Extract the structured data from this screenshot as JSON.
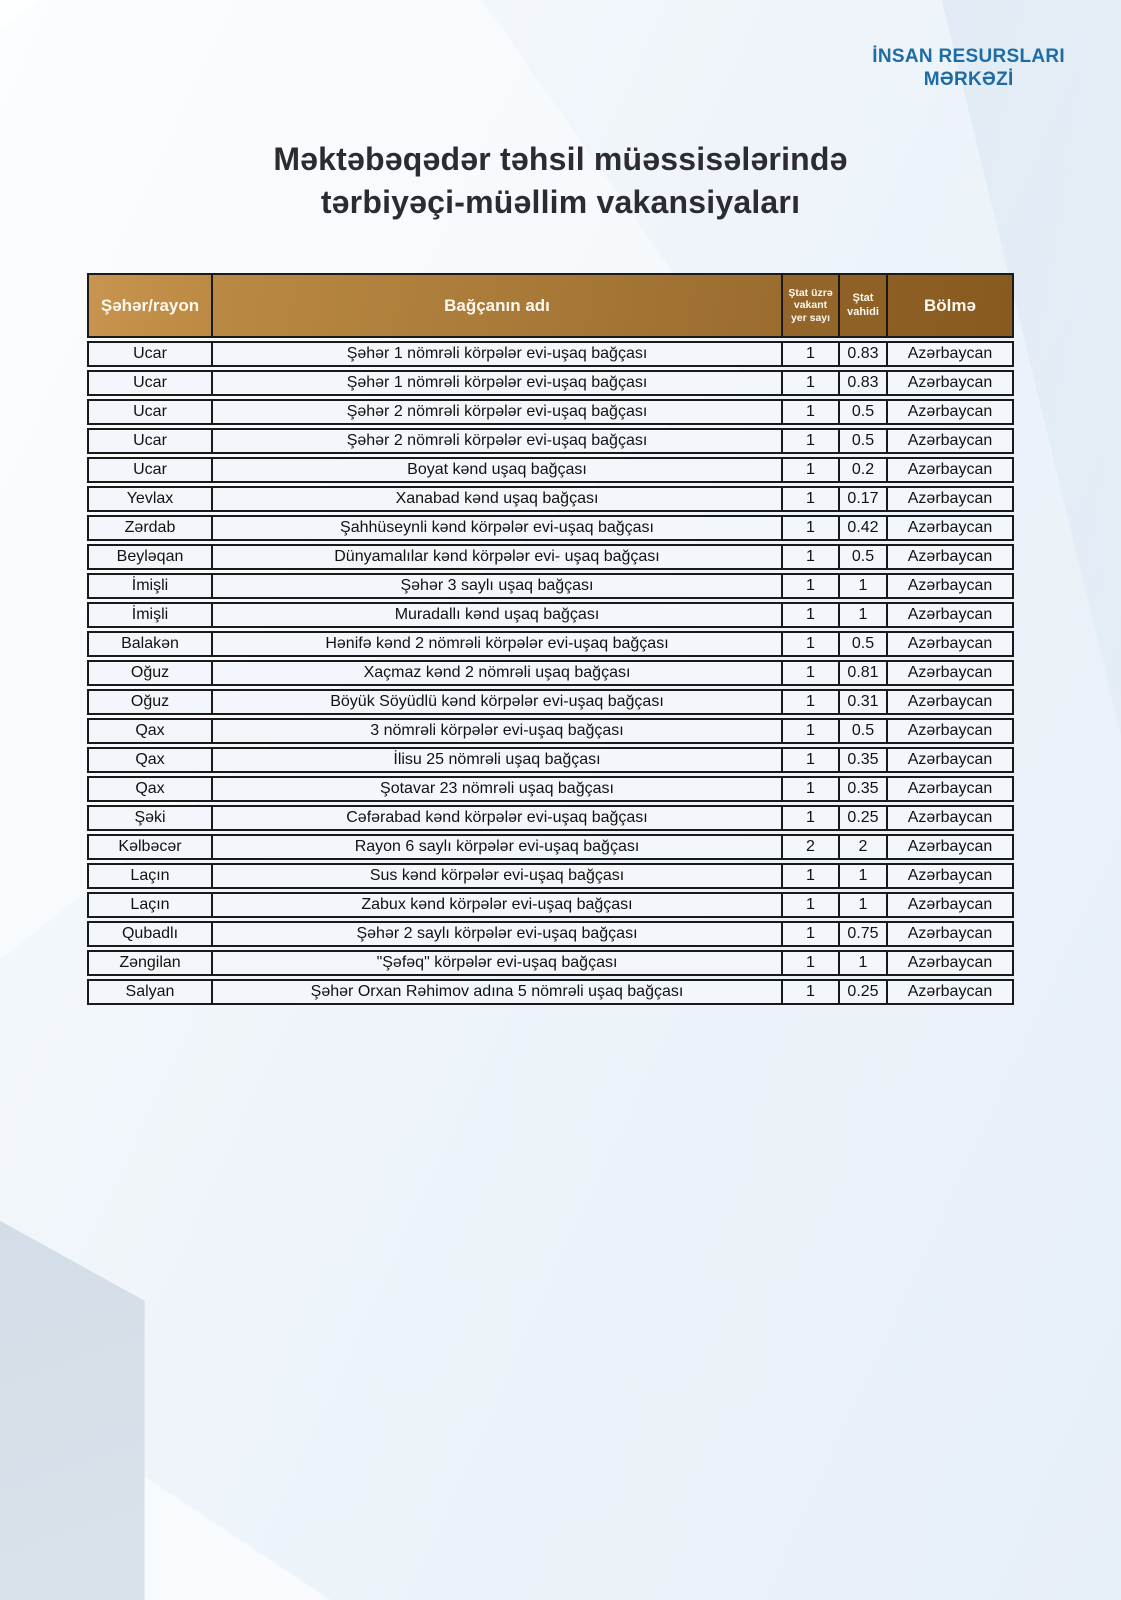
{
  "brand": {
    "line1": "İNSAN RESURSLARI",
    "line2": "MƏRKƏZİ"
  },
  "title": {
    "line1": "Məktəbəqədər təhsil müəssisələrində",
    "line2": "tərbiyəçi-müəllim vakansiyaları"
  },
  "colors": {
    "brand-blue": "#1d6ca6",
    "title-text": "#2c2b31",
    "header-brown-light": "#c4914c",
    "header-brown-dark": "#8a5c22",
    "border": "#1a1a1a",
    "row-bg": "#f3f7fb"
  },
  "table": {
    "columns": [
      "Şəhər/rayon",
      "Bağçanın adı",
      "Ştat üzrə vakant yer sayı",
      "Ştat vahidi",
      "Bölmə"
    ],
    "rows": [
      {
        "region": "Ucar",
        "name": "Şəhər 1 nömrəli körpələr evi-uşaq bağçası",
        "vacant": "1",
        "unit": "0.83",
        "section": "Azərbaycan"
      },
      {
        "region": "Ucar",
        "name": "Şəhər 1 nömrəli körpələr evi-uşaq bağçası",
        "vacant": "1",
        "unit": "0.83",
        "section": "Azərbaycan"
      },
      {
        "region": "Ucar",
        "name": "Şəhər 2 nömrəli körpələr evi-uşaq bağçası",
        "vacant": "1",
        "unit": "0.5",
        "section": "Azərbaycan"
      },
      {
        "region": "Ucar",
        "name": "Şəhər 2 nömrəli körpələr evi-uşaq bağçası",
        "vacant": "1",
        "unit": "0.5",
        "section": "Azərbaycan"
      },
      {
        "region": "Ucar",
        "name": "Boyat kənd uşaq bağçası",
        "vacant": "1",
        "unit": "0.2",
        "section": "Azərbaycan"
      },
      {
        "region": "Yevlax",
        "name": "Xanabad kənd uşaq bağçası",
        "vacant": "1",
        "unit": "0.17",
        "section": "Azərbaycan"
      },
      {
        "region": "Zərdab",
        "name": "Şahhüseynli kənd körpələr evi-uşaq bağçası",
        "vacant": "1",
        "unit": "0.42",
        "section": "Azərbaycan"
      },
      {
        "region": "Beyləqan",
        "name": "Dünyamalılar kənd körpələr evi- uşaq bağçası",
        "vacant": "1",
        "unit": "0.5",
        "section": "Azərbaycan"
      },
      {
        "region": "İmişli",
        "name": "Şəhər 3 saylı uşaq bağçası",
        "vacant": "1",
        "unit": "1",
        "section": "Azərbaycan"
      },
      {
        "region": "İmişli",
        "name": "Muradallı kənd uşaq bağçası",
        "vacant": "1",
        "unit": "1",
        "section": "Azərbaycan"
      },
      {
        "region": "Balakən",
        "name": "Hənifə kənd 2 nömrəli körpələr evi-uşaq bağçası",
        "vacant": "1",
        "unit": "0.5",
        "section": "Azərbaycan"
      },
      {
        "region": "Oğuz",
        "name": "Xaçmaz kənd 2 nömrəli uşaq bağçası",
        "vacant": "1",
        "unit": "0.81",
        "section": "Azərbaycan"
      },
      {
        "region": "Oğuz",
        "name": "Böyük Söyüdlü kənd körpələr evi-uşaq bağçası",
        "vacant": "1",
        "unit": "0.31",
        "section": "Azərbaycan"
      },
      {
        "region": "Qax",
        "name": "3 nömrəli körpələr evi-uşaq bağçası",
        "vacant": "1",
        "unit": "0.5",
        "section": "Azərbaycan"
      },
      {
        "region": "Qax",
        "name": "İlisu 25 nömrəli uşaq bağçası",
        "vacant": "1",
        "unit": "0.35",
        "section": "Azərbaycan"
      },
      {
        "region": "Qax",
        "name": "Şotavar 23 nömrəli uşaq bağçası",
        "vacant": "1",
        "unit": "0.35",
        "section": "Azərbaycan"
      },
      {
        "region": "Şəki",
        "name": "Cəfərabad kənd körpələr evi-uşaq bağçası",
        "vacant": "1",
        "unit": "0.25",
        "section": "Azərbaycan"
      },
      {
        "region": "Kəlbəcər",
        "name": "Rayon 6 saylı körpələr evi-uşaq bağçası",
        "vacant": "2",
        "unit": "2",
        "section": "Azərbaycan"
      },
      {
        "region": "Laçın",
        "name": "Sus kənd körpələr evi-uşaq bağçası",
        "vacant": "1",
        "unit": "1",
        "section": "Azərbaycan"
      },
      {
        "region": "Laçın",
        "name": "Zabux kənd körpələr evi-uşaq bağçası",
        "vacant": "1",
        "unit": "1",
        "section": "Azərbaycan"
      },
      {
        "region": "Qubadlı",
        "name": "Şəhər 2 saylı körpələr evi-uşaq bağçası",
        "vacant": "1",
        "unit": "0.75",
        "section": "Azərbaycan"
      },
      {
        "region": "Zəngilan",
        "name": "\"Şəfəq\" körpələr evi-uşaq bağçası",
        "vacant": "1",
        "unit": "1",
        "section": "Azərbaycan"
      },
      {
        "region": "Salyan",
        "name": "Şəhər Orxan Rəhimov adına 5 nömrəli uşaq bağçası",
        "vacant": "1",
        "unit": "0.25",
        "section": "Azərbaycan"
      }
    ]
  }
}
